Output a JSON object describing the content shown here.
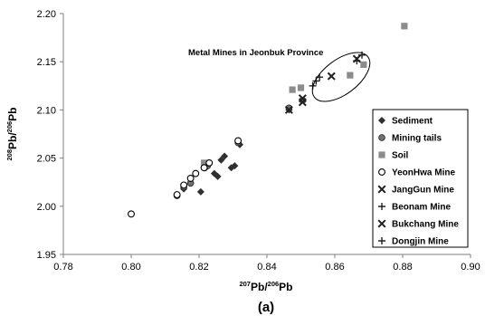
{
  "chart_data": {
    "type": "scatter",
    "xlim": [
      0.78,
      0.9
    ],
    "ylim": [
      1.95,
      2.2
    ],
    "x_ticks": [
      "0.78",
      "0.80",
      "0.82",
      "0.84",
      "0.86",
      "0.88",
      "0.90"
    ],
    "y_ticks": [
      "1.95",
      "2.00",
      "2.05",
      "2.10",
      "2.15",
      "2.20"
    ],
    "xlabel": {
      "sup": "207",
      "a": "Pb/",
      "sup2": "206",
      "b": "Pb"
    },
    "ylabel": {
      "sup": "208",
      "a": "Pb/",
      "sup2": "206",
      "b": "Pb"
    },
    "panel_label": "(a)",
    "annotation": "Metal Mines in Jeonbuk Province",
    "legend_position": "bottom-right",
    "grid": false,
    "series": [
      {
        "name": "Sediment",
        "marker": "diamond",
        "color": "#303030",
        "points": [
          [
            0.8155,
            2.018
          ],
          [
            0.8205,
            2.015
          ],
          [
            0.822,
            2.04
          ],
          [
            0.8245,
            2.034
          ],
          [
            0.8255,
            2.031
          ],
          [
            0.8265,
            2.048
          ],
          [
            0.8275,
            2.052
          ],
          [
            0.8295,
            2.04
          ],
          [
            0.8305,
            2.042
          ],
          [
            0.832,
            2.064
          ],
          [
            0.8465,
            2.1
          ]
        ]
      },
      {
        "name": "Mining tails",
        "marker": "circle-filled",
        "color": "#707070",
        "points": [
          [
            0.8135,
            2.011
          ],
          [
            0.8155,
            2.02
          ],
          [
            0.8175,
            2.024
          ],
          [
            0.8215,
            2.04
          ],
          [
            0.8225,
            2.042
          ],
          [
            0.8315,
            2.066
          ],
          [
            0.8465,
            2.102
          ],
          [
            0.8505,
            2.11
          ]
        ]
      },
      {
        "name": "Soil",
        "marker": "square",
        "color": "#8c8c8c",
        "points": [
          [
            0.8215,
            2.045
          ],
          [
            0.8475,
            2.121
          ],
          [
            0.85,
            2.123
          ],
          [
            0.8645,
            2.136
          ],
          [
            0.8685,
            2.147
          ],
          [
            0.8805,
            2.187
          ]
        ]
      },
      {
        "name": "YeonHwa Mine",
        "marker": "circle-open",
        "color": "#000000",
        "points": [
          [
            0.8,
            1.992
          ],
          [
            0.8135,
            2.012
          ],
          [
            0.8155,
            2.022
          ],
          [
            0.8175,
            2.029
          ],
          [
            0.819,
            2.034
          ],
          [
            0.8215,
            2.04
          ],
          [
            0.823,
            2.045
          ],
          [
            0.8315,
            2.068
          ]
        ]
      },
      {
        "name": "JangGun Mine",
        "marker": "x",
        "color": "#202020",
        "points": [
          [
            0.8465,
            2.1
          ],
          [
            0.8505,
            2.108
          ],
          [
            0.8505,
            2.112
          ]
        ]
      },
      {
        "name": "Beonam Mine",
        "marker": "plus",
        "color": "#202020",
        "points": [
          [
            0.8535,
            2.125
          ],
          [
            0.8545,
            2.13
          ],
          [
            0.8555,
            2.134
          ]
        ]
      },
      {
        "name": "Bukchang Mine",
        "marker": "x",
        "color": "#202020",
        "points": [
          [
            0.859,
            2.135
          ],
          [
            0.8665,
            2.153
          ]
        ]
      },
      {
        "name": "Dongjin Mine",
        "marker": "plus",
        "color": "#202020",
        "points": [
          [
            0.8665,
            2.151
          ],
          [
            0.868,
            2.157
          ]
        ]
      }
    ]
  }
}
